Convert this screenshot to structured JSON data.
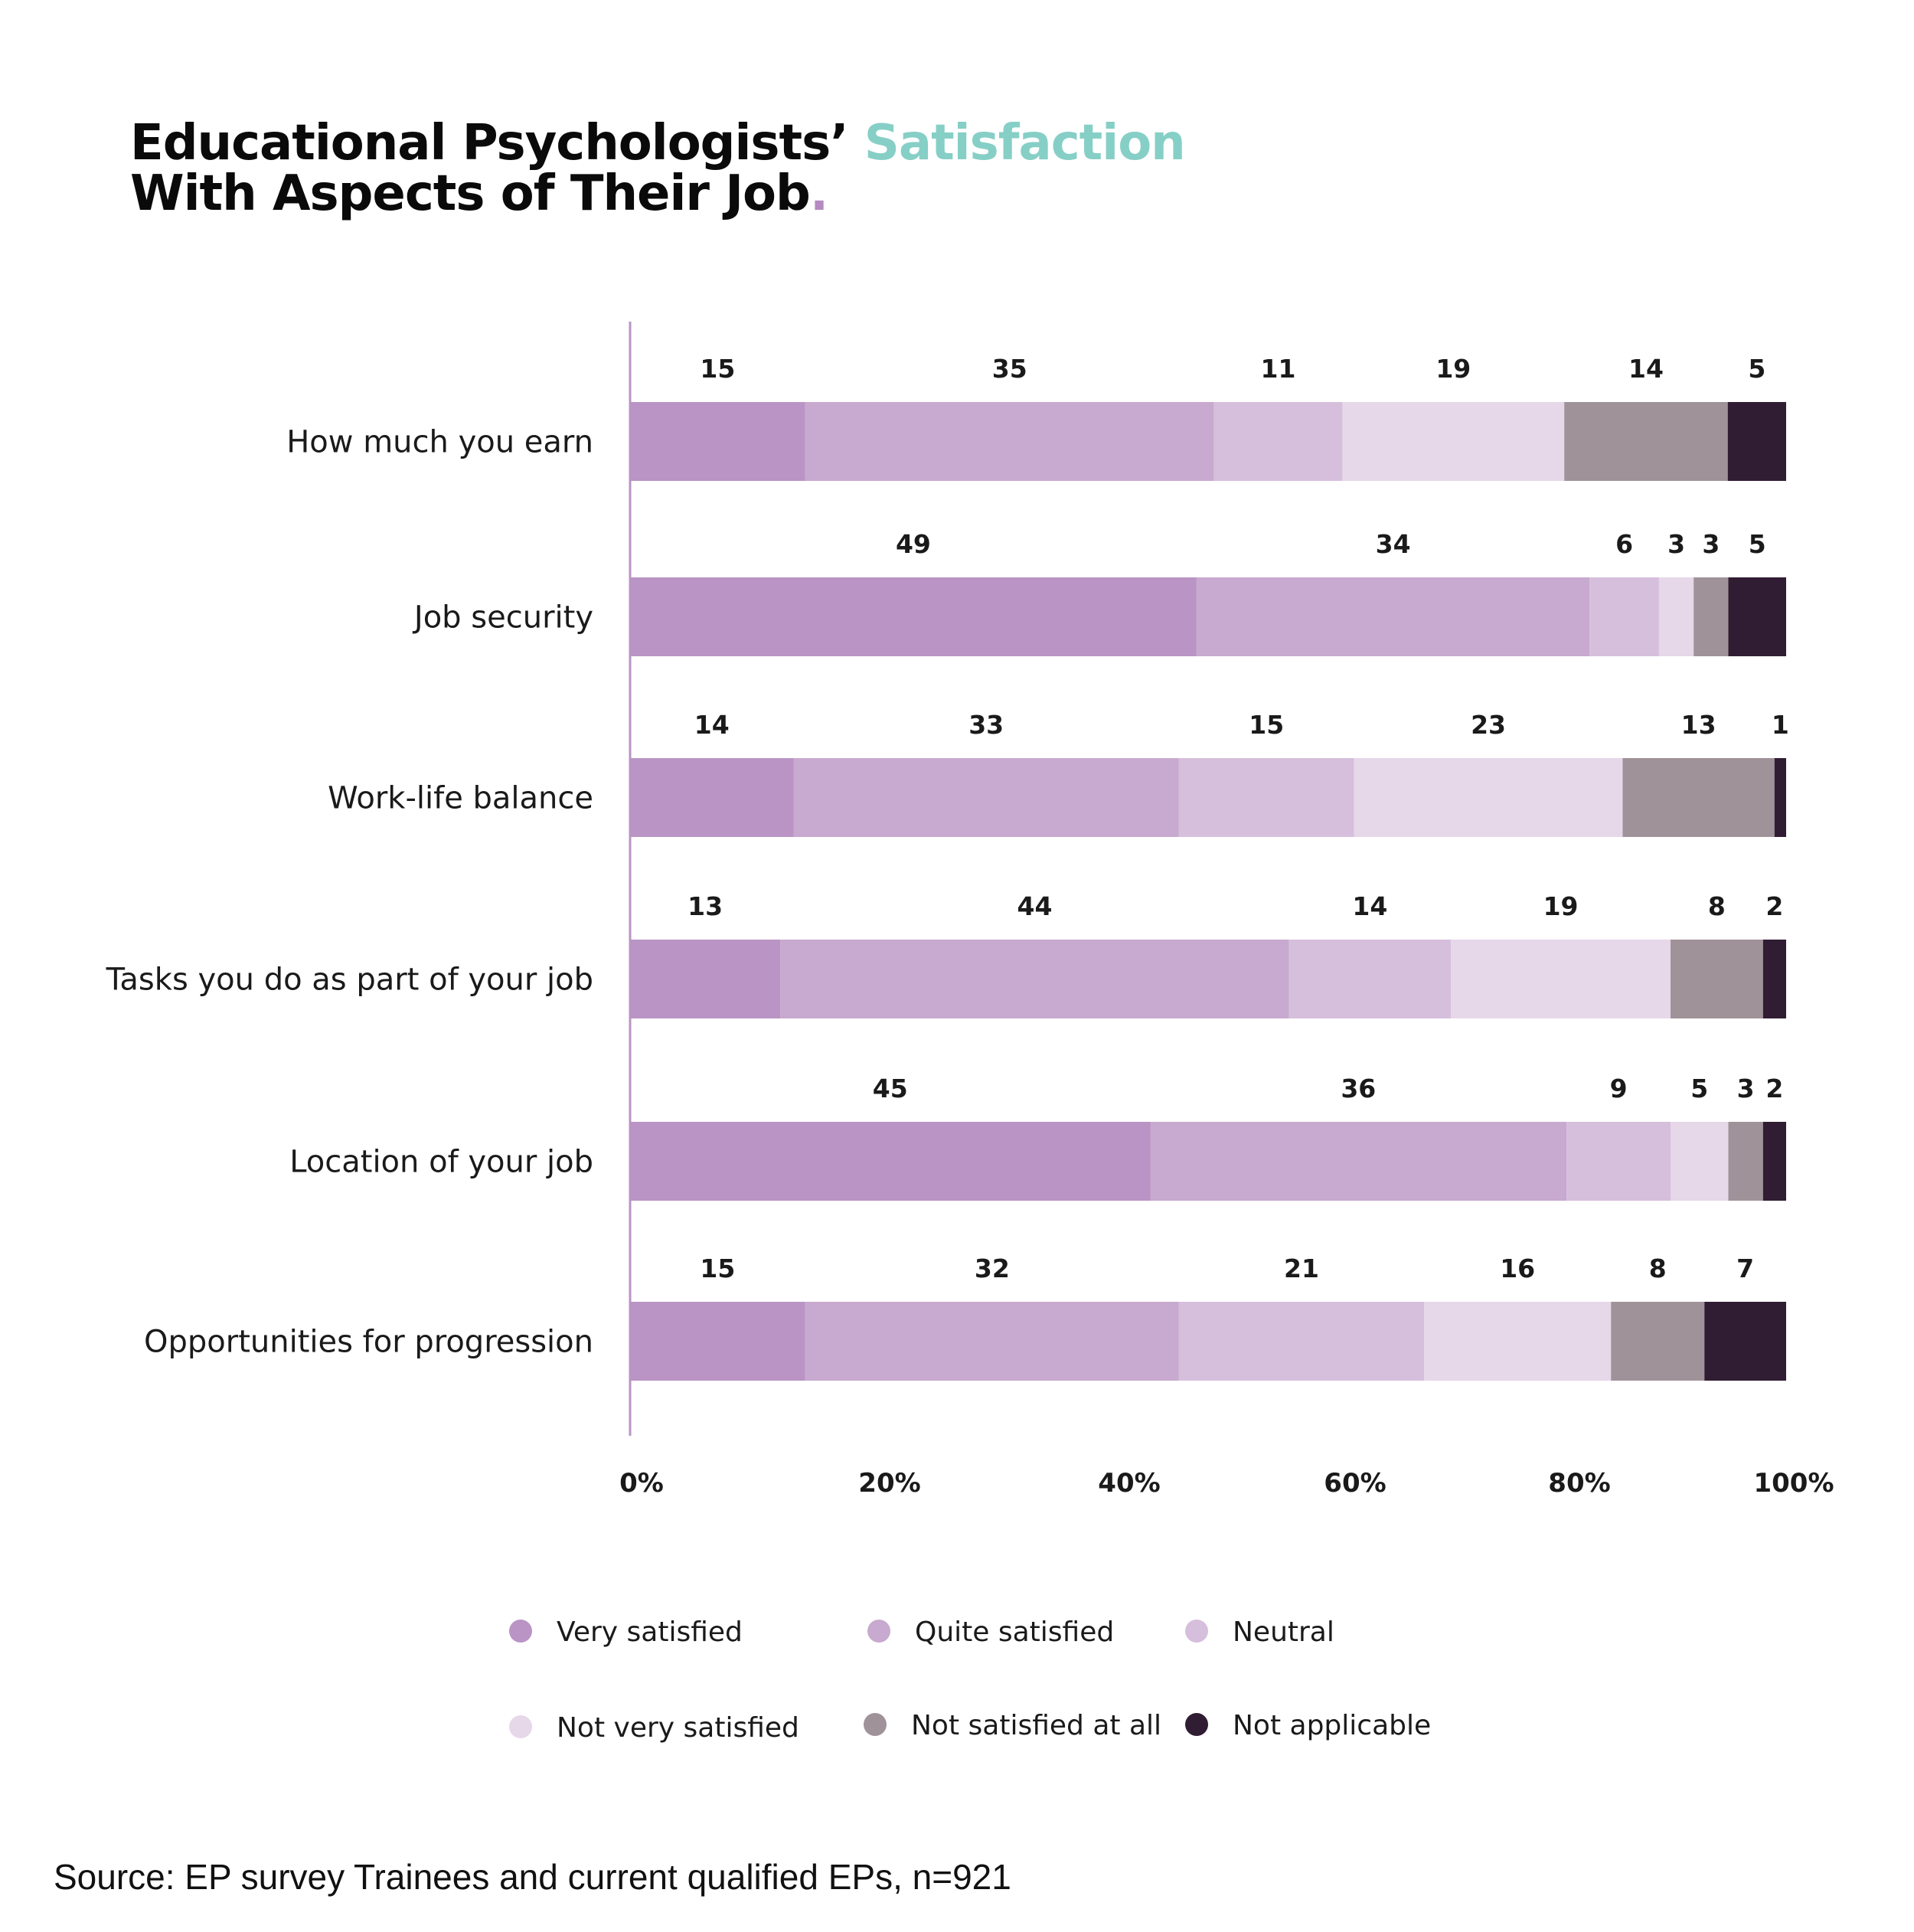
{
  "title": {
    "part1": "Educational Psychologists’ ",
    "accent": "Satisfaction",
    "line2": "With Aspects of Their Job",
    "dot": "."
  },
  "source": "Source: EP survey Trainees and current qualified EPs, n=921",
  "colors": {
    "very_satisfied": "#b994c4",
    "quite_satisfied": "#c8a9cf",
    "neutral": "#d6bfdc",
    "not_very_satisfied": "#e6d7e9",
    "not_satisfied_at_all": "#a09299",
    "not_applicable": "#301c33",
    "axis_line": "#b994c4",
    "title_accent": "#86cfc6",
    "title_dot": "#b48ac1"
  },
  "chart_data": {
    "type": "bar",
    "orientation": "horizontal",
    "stacked": true,
    "categories": [
      "How much you earn",
      "Job security",
      "Work-life balance",
      "Tasks you do as part of your job",
      "Location of your job",
      "Opportunities for progression"
    ],
    "series": [
      {
        "name": "Very satisfied",
        "values": [
          15,
          49,
          14,
          13,
          45,
          15
        ]
      },
      {
        "name": "Quite satisfied",
        "values": [
          35,
          34,
          33,
          44,
          36,
          32
        ]
      },
      {
        "name": "Neutral",
        "values": [
          11,
          6,
          15,
          14,
          9,
          21
        ]
      },
      {
        "name": "Not very satisfied",
        "values": [
          19,
          3,
          23,
          19,
          5,
          16
        ]
      },
      {
        "name": "Not satisfied at all",
        "values": [
          14,
          3,
          13,
          8,
          3,
          8
        ]
      },
      {
        "name": "Not applicable",
        "values": [
          5,
          5,
          1,
          2,
          2,
          7
        ]
      }
    ],
    "xticks": [
      "0%",
      "20%",
      "40%",
      "60%",
      "80%",
      "100%"
    ],
    "xlim": [
      0,
      100
    ],
    "legend_position": "bottom",
    "grid": false
  }
}
